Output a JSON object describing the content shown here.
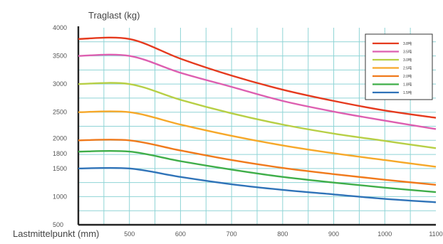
{
  "chart_data": {
    "type": "line",
    "title": "",
    "ylabel": "Traglast (kg)",
    "xlabel": "Lastmittelpunkt (mm)",
    "xlim": [
      400,
      1100
    ],
    "ylim": [
      500,
      4000
    ],
    "x_ticks": [
      "500",
      "600",
      "700",
      "800",
      "900",
      "1000",
      "1100"
    ],
    "y_ticks": [
      {
        "value": 500,
        "label": "500"
      },
      {
        "value": 1000,
        "label": "1000"
      },
      {
        "value": 1500,
        "label": "1500"
      },
      {
        "value": 1800,
        "label": "1800"
      },
      {
        "value": 2000,
        "label": "2000"
      },
      {
        "value": 2500,
        "label": "2500"
      },
      {
        "value": 3000,
        "label": "3000"
      },
      {
        "value": 3500,
        "label": "3500"
      },
      {
        "value": 4000,
        "label": "4000"
      }
    ],
    "grid": true,
    "legend_position": "top-right",
    "x": [
      400,
      500,
      600,
      700,
      800,
      900,
      1000,
      1100
    ],
    "series": [
      {
        "name": "3.8吨",
        "color": "#e53a1e",
        "values": [
          3800,
          3800,
          3450,
          3150,
          2900,
          2700,
          2530,
          2400
        ]
      },
      {
        "name": "3.5吨",
        "color": "#dd5fb0",
        "values": [
          3500,
          3500,
          3200,
          2950,
          2700,
          2510,
          2350,
          2200
        ]
      },
      {
        "name": "3.0吨",
        "color": "#b7cf45",
        "values": [
          3000,
          3000,
          2720,
          2480,
          2280,
          2120,
          1990,
          1860
        ]
      },
      {
        "name": "2.5吨",
        "color": "#f6a829",
        "values": [
          2500,
          2500,
          2280,
          2080,
          1910,
          1770,
          1650,
          1530
        ]
      },
      {
        "name": "2.0吨",
        "color": "#f07a1c",
        "values": [
          2000,
          2000,
          1820,
          1650,
          1510,
          1400,
          1300,
          1210
        ]
      },
      {
        "name": "1.8吨",
        "color": "#3fae49",
        "values": [
          1800,
          1800,
          1630,
          1480,
          1350,
          1250,
          1160,
          1080
        ]
      },
      {
        "name": "1.5吨",
        "color": "#2f73b8",
        "values": [
          1500,
          1500,
          1350,
          1220,
          1120,
          1040,
          960,
          900
        ]
      }
    ]
  }
}
